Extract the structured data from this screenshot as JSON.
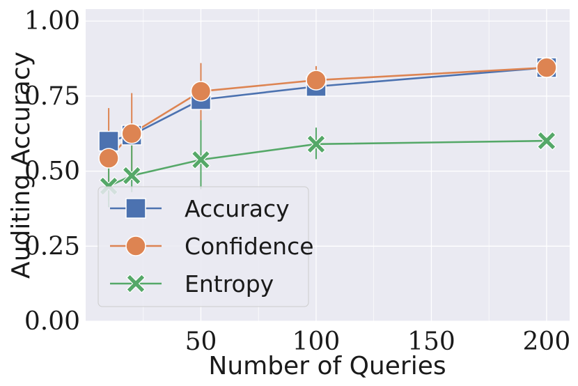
{
  "chart_data": {
    "type": "line",
    "xlabel": "Number of Queries",
    "ylabel": "Auditing Accuracy",
    "xlim": [
      0,
      210
    ],
    "ylim": [
      0,
      1.04
    ],
    "x_ticks": [
      50,
      100,
      150,
      200
    ],
    "x_tick_labels": [
      "50",
      "100",
      "150",
      "200"
    ],
    "y_ticks": [
      0,
      0.25,
      0.5,
      0.75,
      1.0
    ],
    "y_tick_labels": [
      "0.00",
      "0.25",
      "0.50",
      "0.75",
      "1.00"
    ],
    "grid": true,
    "legend_position": "bottom-left",
    "x": [
      10,
      20,
      50,
      100,
      200
    ],
    "series": [
      {
        "name": "Accuracy",
        "marker": "square",
        "color": "#4c72b0",
        "values": [
          0.6,
          0.62,
          0.738,
          0.782,
          0.845
        ],
        "err_low": [
          0.6,
          0.62,
          0.738,
          0.782,
          0.845
        ],
        "err_high": [
          0.6,
          0.62,
          0.738,
          0.782,
          0.845
        ]
      },
      {
        "name": "Confidence",
        "marker": "circle",
        "color": "#dd8452",
        "values": [
          0.543,
          0.625,
          0.766,
          0.803,
          0.845
        ],
        "err_low": [
          0.4,
          0.5,
          0.67,
          0.77,
          0.83
        ],
        "err_high": [
          0.71,
          0.76,
          0.86,
          0.85,
          0.865
        ]
      },
      {
        "name": "Entropy",
        "marker": "x",
        "color": "#55a868",
        "values": [
          0.45,
          0.485,
          0.538,
          0.59,
          0.601
        ],
        "err_low": [
          0.38,
          0.43,
          0.44,
          0.54,
          0.59
        ],
        "err_high": [
          0.52,
          0.62,
          0.67,
          0.645,
          0.615
        ]
      }
    ]
  }
}
